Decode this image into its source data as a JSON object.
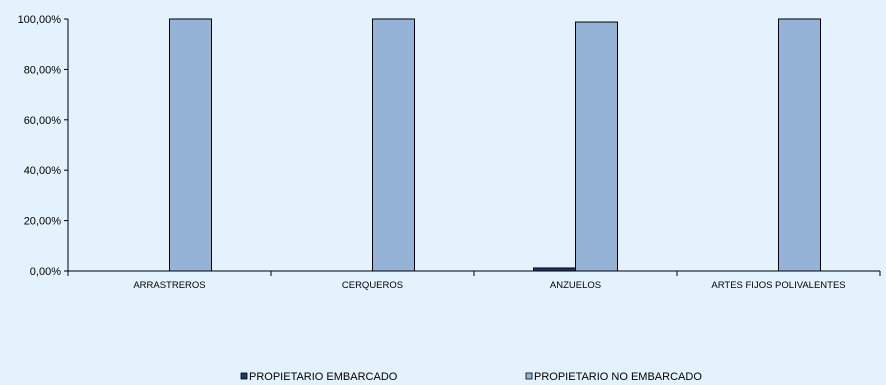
{
  "chart_data": {
    "type": "bar",
    "categories": [
      "ARRASTREROS",
      "CERQUEROS",
      "ANZUELOS",
      "ARTES FIJOS POLIVALENTES"
    ],
    "series": [
      {
        "name": "PROPIETARIO EMBARCADO",
        "values": [
          0,
          0,
          1.2,
          0
        ],
        "color": "#1F3864"
      },
      {
        "name": "PROPIETARIO NO EMBARCADO",
        "values": [
          100,
          100,
          98.8,
          100
        ],
        "color": "#95B3D7"
      }
    ],
    "yticks": [
      "0,00%",
      "20,00%",
      "40,00%",
      "60,00%",
      "80,00%",
      "100,00%"
    ],
    "ylim": [
      0,
      100
    ],
    "grid": false,
    "legend_position": "bottom",
    "background_color": "#E4F2FD"
  }
}
